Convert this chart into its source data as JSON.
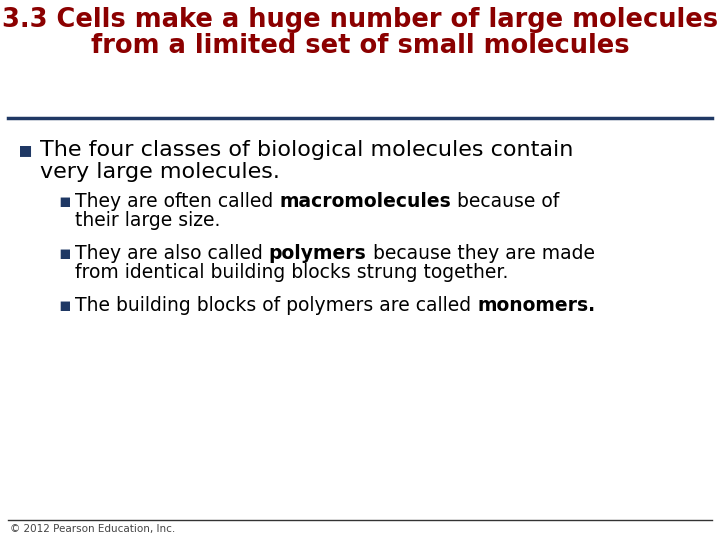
{
  "background_color": "#FFFFFF",
  "title_line1": "3.3 Cells make a huge number of large molecules",
  "title_line2": "from a limited set of small molecules",
  "title_color": "#8B0000",
  "title_fontsize": 18.5,
  "divider_color": "#1F3864",
  "bullet_color": "#1F3864",
  "footer_text": "© 2012 Pearson Education, Inc.",
  "footer_fontsize": 7.5,
  "footer_line_color": "#333333",
  "text_color": "#000000",
  "main_bullet_fontsize": 16,
  "sub_bullet_fontsize": 13.5
}
